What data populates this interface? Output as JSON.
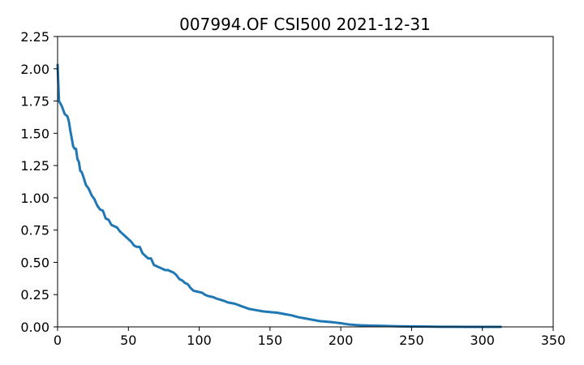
{
  "chart_data": {
    "type": "line",
    "title": "007994.OF CSI500 2021-12-31",
    "xlabel": "",
    "ylabel": "",
    "xlim": [
      0,
      350
    ],
    "ylim": [
      0,
      2.25
    ],
    "x_ticks": [
      0,
      50,
      100,
      150,
      200,
      250,
      300,
      350
    ],
    "y_ticks": [
      0,
      0.25,
      0.5,
      0.75,
      1.0,
      1.25,
      1.5,
      1.75,
      2.0,
      2.25
    ],
    "x_tick_labels": [
      "0",
      "50",
      "100",
      "150",
      "200",
      "250",
      "300",
      "350"
    ],
    "y_tick_labels": [
      "0.00",
      "0.25",
      "0.50",
      "0.75",
      "1.00",
      "1.25",
      "1.50",
      "1.75",
      "2.00",
      "2.25"
    ],
    "grid": false,
    "series_color": "#1f77b4",
    "series": [
      {
        "x": [
          0,
          1,
          2,
          3,
          5,
          7,
          8,
          9,
          10,
          11,
          12,
          13,
          14,
          15,
          16,
          17,
          18,
          20,
          22,
          24,
          26,
          28,
          30,
          32,
          34,
          36,
          38,
          40,
          42,
          44,
          46,
          48,
          50,
          52,
          54,
          56,
          58,
          60,
          62,
          64,
          66,
          68,
          70,
          72,
          74,
          76,
          78,
          80,
          82,
          84,
          86,
          88,
          90,
          92,
          94,
          96,
          98,
          100,
          102,
          104,
          106,
          108,
          110,
          112,
          115,
          118,
          120,
          125,
          130,
          135,
          140,
          145,
          150,
          155,
          160,
          165,
          170,
          175,
          180,
          185,
          190,
          195,
          200,
          205,
          210,
          215,
          220,
          230,
          240,
          250,
          260,
          270,
          280,
          290,
          300,
          310,
          313
        ],
        "y": [
          2.03,
          1.75,
          1.73,
          1.71,
          1.65,
          1.63,
          1.59,
          1.52,
          1.46,
          1.4,
          1.38,
          1.38,
          1.3,
          1.28,
          1.21,
          1.2,
          1.17,
          1.1,
          1.07,
          1.02,
          0.99,
          0.94,
          0.91,
          0.9,
          0.84,
          0.83,
          0.79,
          0.78,
          0.77,
          0.74,
          0.72,
          0.7,
          0.68,
          0.66,
          0.63,
          0.62,
          0.62,
          0.57,
          0.55,
          0.53,
          0.53,
          0.48,
          0.47,
          0.46,
          0.45,
          0.44,
          0.44,
          0.43,
          0.42,
          0.4,
          0.37,
          0.36,
          0.34,
          0.33,
          0.3,
          0.28,
          0.275,
          0.27,
          0.265,
          0.25,
          0.24,
          0.235,
          0.23,
          0.22,
          0.21,
          0.2,
          0.19,
          0.18,
          0.16,
          0.14,
          0.13,
          0.12,
          0.115,
          0.11,
          0.1,
          0.09,
          0.075,
          0.065,
          0.055,
          0.045,
          0.04,
          0.035,
          0.028,
          0.02,
          0.015,
          0.012,
          0.01,
          0.008,
          0.005,
          0.003,
          0.002,
          0.001,
          0.0005,
          0.0003,
          0.0002,
          0.0001,
          0.0
        ]
      }
    ]
  }
}
